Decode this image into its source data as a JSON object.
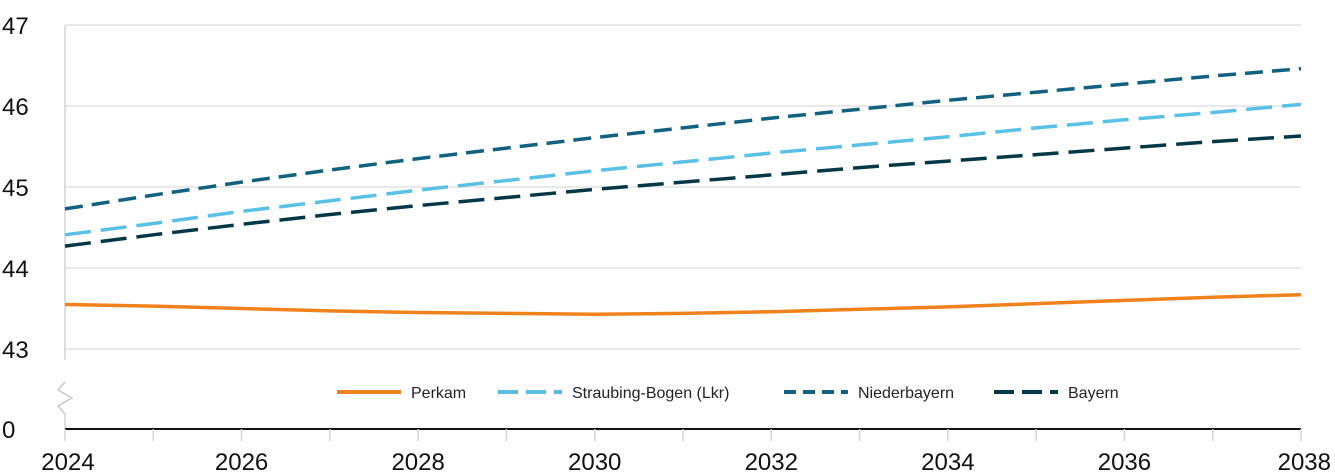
{
  "chart_data": {
    "type": "line",
    "title": "",
    "xlabel": "",
    "ylabel": "",
    "x": [
      2024,
      2025,
      2026,
      2027,
      2028,
      2029,
      2030,
      2031,
      2032,
      2033,
      2034,
      2035,
      2036,
      2037,
      2038
    ],
    "x_ticks": [
      "2024",
      "2026",
      "2028",
      "2030",
      "2032",
      "2034",
      "2036",
      "2038"
    ],
    "y_ticks": [
      "0",
      "43",
      "44",
      "45",
      "46",
      "47"
    ],
    "y_axis_break": true,
    "ylim": [
      42.8,
      47
    ],
    "grid": true,
    "legend_position": "bottom-center",
    "series": [
      {
        "name": "Perkam",
        "color": "#F0821E",
        "dash": "solid",
        "values": [
          43.55,
          43.53,
          43.5,
          43.47,
          43.45,
          43.44,
          43.43,
          43.44,
          43.46,
          43.49,
          43.52,
          43.56,
          43.6,
          43.64,
          43.67
        ]
      },
      {
        "name": "Straubing-Bogen (Lkr)",
        "color": "#5BC0E6",
        "dash": "long",
        "values": [
          44.41,
          44.55,
          44.7,
          44.83,
          44.96,
          45.08,
          45.2,
          45.31,
          45.42,
          45.52,
          45.62,
          45.73,
          45.83,
          45.92,
          46.02
        ]
      },
      {
        "name": "Niederbayern",
        "color": "#11617F",
        "dash": "short",
        "values": [
          44.73,
          44.9,
          45.06,
          45.21,
          45.35,
          45.48,
          45.61,
          45.73,
          45.85,
          45.96,
          46.07,
          46.17,
          46.27,
          46.37,
          46.46
        ]
      },
      {
        "name": "Bayern",
        "color": "#053847",
        "dash": "long",
        "values": [
          44.27,
          44.41,
          44.54,
          44.66,
          44.77,
          44.87,
          44.97,
          45.06,
          45.15,
          45.24,
          45.32,
          45.4,
          45.48,
          45.56,
          45.63
        ]
      }
    ]
  }
}
